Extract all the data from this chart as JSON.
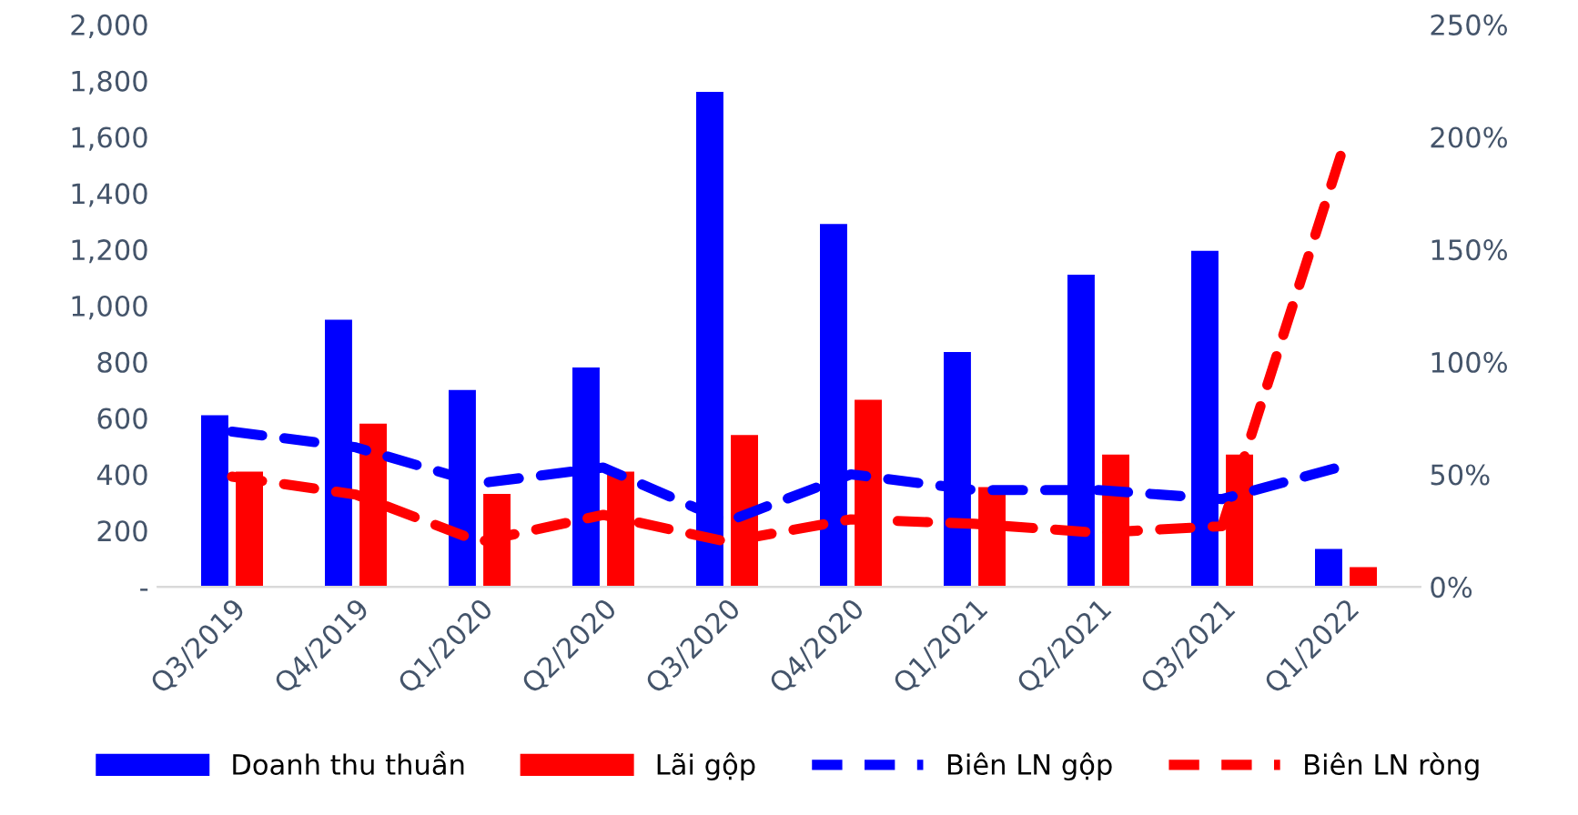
{
  "chart_data": {
    "type": "bar",
    "categories": [
      "Q3/2019",
      "Q4/2019",
      "Q1/2020",
      "Q2/2020",
      "Q3/2020",
      "Q4/2020",
      "Q1/2021",
      "Q2/2021",
      "Q3/2021",
      "Q1/2022"
    ],
    "series": [
      {
        "name": "Doanh thu thuần",
        "color": "#0000ff",
        "values": [
          610,
          950,
          700,
          780,
          1760,
          1290,
          835,
          1110,
          1195,
          135
        ]
      },
      {
        "name": "Lãi gộp",
        "color": "#ff0000",
        "values": [
          410,
          580,
          330,
          410,
          540,
          665,
          355,
          470,
          470,
          70
        ]
      },
      {
        "name": "Biên LN gộp",
        "type": "line",
        "axis": "y2",
        "line_style": "dashed",
        "color": "#0000ff",
        "values": [
          69,
          62,
          46,
          53,
          29,
          50,
          43,
          43,
          39,
          54
        ]
      },
      {
        "name": "Biên LN ròng",
        "type": "line",
        "axis": "y2",
        "line_style": "dashed",
        "color": "#ff0000",
        "values": [
          49,
          41,
          20,
          32,
          20,
          30,
          28,
          24,
          27,
          199
        ]
      }
    ],
    "ylim": [
      0,
      2000
    ],
    "yticks": [
      {
        "value": 0,
        "label": "-"
      },
      {
        "value": 200,
        "label": "200"
      },
      {
        "value": 400,
        "label": "400"
      },
      {
        "value": 600,
        "label": "600"
      },
      {
        "value": 800,
        "label": "800"
      },
      {
        "value": 1000,
        "label": "1,000"
      },
      {
        "value": 1200,
        "label": "1,200"
      },
      {
        "value": 1400,
        "label": "1,400"
      },
      {
        "value": 1600,
        "label": "1,600"
      },
      {
        "value": 1800,
        "label": "1,800"
      },
      {
        "value": 2000,
        "label": "2,000"
      }
    ],
    "y2lim": [
      0,
      250
    ],
    "y2ticks": [
      {
        "value": 0,
        "label": "0%"
      },
      {
        "value": 50,
        "label": "50%"
      },
      {
        "value": 100,
        "label": "100%"
      },
      {
        "value": 150,
        "label": "150%"
      },
      {
        "value": 200,
        "label": "200%"
      },
      {
        "value": 250,
        "label": "250%"
      }
    ],
    "grid": false,
    "legend": "bottom"
  }
}
